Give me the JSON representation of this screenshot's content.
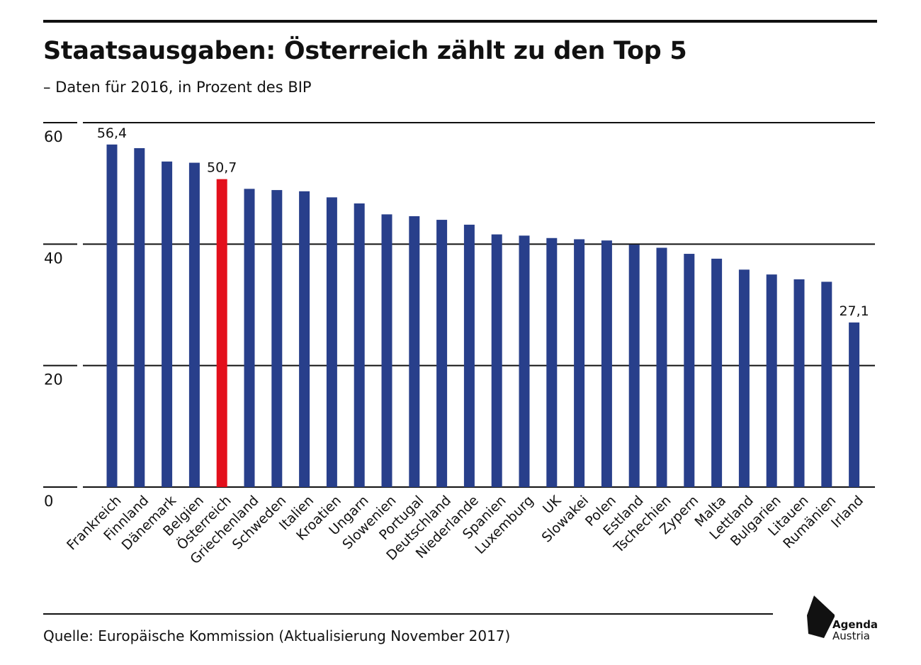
{
  "title": "Staatsausgaben: Österreich zählt zu den Top 5",
  "subtitle": "– Daten für 2016, in Prozent des BIP",
  "source": "Quelle: Europäische Kommission (Aktualisierung November 2017)",
  "logo": {
    "name": "Agenda",
    "sub": "Austria"
  },
  "colors": {
    "bar": "#283f8b",
    "highlight": "#e3101c",
    "grid": "#111111",
    "text": "#111111"
  },
  "chart_data": {
    "type": "bar",
    "categories": [
      "Frankreich",
      "Finnland",
      "Dänemark",
      "Belgien",
      "Österreich",
      "Griechenland",
      "Schweden",
      "Italien",
      "Kroatien",
      "Ungarn",
      "Slowenien",
      "Portugal",
      "Deutschland",
      "Niederlande",
      "Spanien",
      "Luxemburg",
      "UK",
      "Slowakei",
      "Polen",
      "Estland",
      "Tschechien",
      "Zypern",
      "Malta",
      "Lettland",
      "Bulgarien",
      "Litauen",
      "Rumänien",
      "Irland"
    ],
    "values": [
      56.4,
      55.8,
      53.6,
      53.4,
      50.7,
      49.1,
      48.9,
      48.7,
      47.7,
      46.7,
      44.9,
      44.6,
      44.0,
      43.2,
      41.6,
      41.4,
      41.0,
      40.8,
      40.6,
      39.9,
      39.4,
      38.4,
      37.6,
      35.8,
      35.0,
      34.2,
      33.8,
      27.1
    ],
    "value_labels": [
      "56,4",
      "",
      "",
      "",
      "50,7",
      "",
      "",
      "",
      "",
      "",
      "",
      "",
      "",
      "",
      "",
      "",
      "",
      "",
      "",
      "",
      "",
      "",
      "",
      "",
      "",
      "",
      "",
      "27,1"
    ],
    "highlight": "Österreich",
    "yticks": [
      0,
      20,
      40,
      60
    ],
    "ylim": [
      0,
      60
    ],
    "grid": true,
    "xlabel": "",
    "ylabel": ""
  }
}
